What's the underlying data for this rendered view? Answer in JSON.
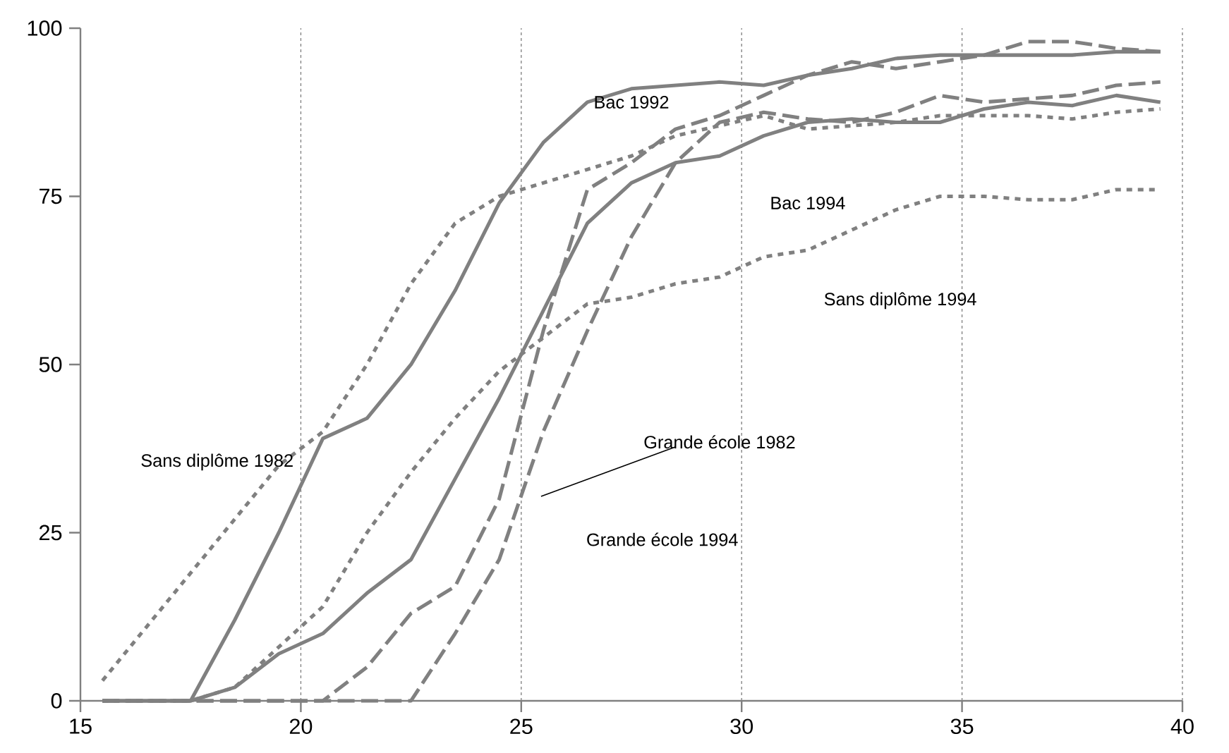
{
  "chart_data": {
    "type": "line",
    "x": [
      15.5,
      16.5,
      17.5,
      18.5,
      19.5,
      20.5,
      21.5,
      22.5,
      23.5,
      24.5,
      25.5,
      26.5,
      27.5,
      28.5,
      29.5,
      30.5,
      31.5,
      32.5,
      33.5,
      34.5,
      35.5,
      36.5,
      37.5,
      38.5,
      39.5
    ],
    "series": [
      {
        "color": "#808080",
        "line_style": "solid",
        "values": [
          0,
          0,
          0,
          12,
          25,
          39,
          42,
          50,
          61,
          74,
          83,
          89,
          91,
          91.5,
          92,
          91.5,
          93,
          94,
          95.5,
          96,
          96,
          96,
          96,
          96.5,
          96.5
        ]
      },
      {
        "color": "#808080",
        "line_style": "solid",
        "values": [
          0,
          0,
          0,
          2,
          7,
          10,
          16,
          21,
          33,
          45,
          58,
          71,
          77,
          80,
          81,
          84,
          86,
          86.5,
          86,
          86,
          88,
          89,
          88.5,
          90,
          89
        ]
      },
      {
        "color": "#808080",
        "line_style": "dotted",
        "values": [
          3,
          11,
          19,
          27,
          35,
          40,
          50,
          62,
          71,
          75,
          77,
          79,
          81,
          84,
          85.5,
          87,
          85,
          85.5,
          86,
          87,
          87,
          87,
          86.5,
          87.5,
          88
        ]
      },
      {
        "color": "#808080",
        "line_style": "dotted",
        "values": [
          0,
          0,
          0,
          2,
          8,
          14,
          25,
          34,
          42,
          49,
          54,
          59,
          60,
          62,
          63,
          66,
          67,
          70,
          73,
          75,
          75,
          74.5,
          74.5,
          76,
          76
        ]
      },
      {
        "color": "#808080",
        "line_style": "dashed",
        "values": [
          0,
          0,
          0,
          0,
          0,
          0,
          5,
          13,
          17,
          30,
          55,
          76,
          80,
          85,
          87,
          90,
          93,
          95,
          94,
          95,
          96,
          98,
          98,
          97,
          96.5
        ]
      },
      {
        "color": "#808080",
        "line_style": "dashed",
        "values": [
          0,
          0,
          0,
          0,
          0,
          0,
          0,
          0,
          10,
          21,
          40,
          55,
          69,
          80,
          86,
          87.5,
          86.5,
          86,
          87.5,
          90,
          89,
          89.5,
          90,
          91.5,
          92
        ]
      }
    ],
    "xlim": [
      15,
      40
    ],
    "xticks": [
      15,
      20,
      25,
      30,
      35,
      40
    ],
    "ylim": [
      0,
      100
    ],
    "yticks": [
      0,
      25,
      50,
      75,
      100
    ],
    "annotations": [
      "Bac 1992",
      "Bac 1994",
      "Sans diplôme 1982",
      "Sans diplôme 1994",
      "Grande école 1994",
      "Grande école 1982"
    ],
    "grid": "x",
    "marker": "none"
  }
}
